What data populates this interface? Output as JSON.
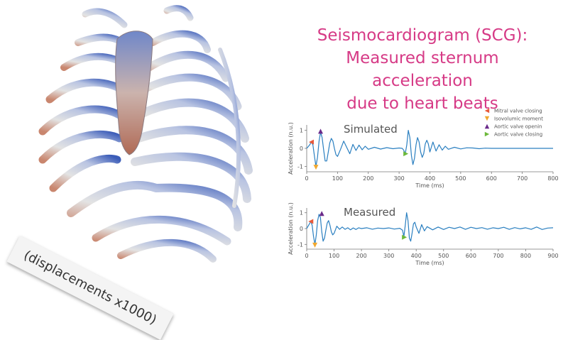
{
  "title_lines": [
    "Seismocardiogram (SCG):",
    "Measured sternum acceleration",
    "due to heart beats"
  ],
  "note": "(displacements x1000)",
  "colors": {
    "title": "#d63a86",
    "trace": "#2a7fc0",
    "mitral": "#e8593a",
    "isovolumic": "#f0a830",
    "aortic_opening": "#6a2a8a",
    "aortic_closing": "#6cb83a"
  },
  "legend": [
    {
      "label": "Mitral valve closing",
      "marker": "left-triangle",
      "color": "#e8593a"
    },
    {
      "label": "Isovolumic moment",
      "marker": "down-triangle",
      "color": "#f0a830"
    },
    {
      "label": "Aortic valve openin",
      "marker": "up-triangle",
      "color": "#6a2a8a"
    },
    {
      "label": "Aortic valve closing",
      "marker": "right-triangle",
      "color": "#6cb83a"
    }
  ],
  "chart_data": [
    {
      "type": "line",
      "title": "Simulated",
      "xlabel": "Time (ms)",
      "ylabel": "Acceleration (n.u.)",
      "xlim": [
        0,
        800
      ],
      "ylim": [
        -1.3,
        1.3
      ],
      "xticks": [
        0,
        100,
        200,
        300,
        400,
        500,
        600,
        700,
        800
      ],
      "yticks": [
        -1,
        0,
        1
      ],
      "series": [
        {
          "x": [
            0,
            5,
            10,
            15,
            20,
            25,
            30,
            35,
            40,
            45,
            50,
            55,
            60,
            65,
            70,
            75,
            80,
            85,
            90,
            95,
            100,
            110,
            120,
            130,
            140,
            150,
            160,
            170,
            180,
            190,
            200,
            220,
            240,
            260,
            280,
            300,
            310,
            315,
            320,
            325,
            330,
            335,
            340,
            345,
            350,
            355,
            360,
            365,
            370,
            375,
            380,
            385,
            390,
            395,
            400,
            410,
            420,
            430,
            440,
            450,
            460,
            480,
            500,
            520,
            540,
            560,
            580,
            600,
            650,
            700,
            750,
            800
          ],
          "y": [
            0,
            0.1,
            0.2,
            0.35,
            0.2,
            -0.4,
            -1.0,
            -0.5,
            0.4,
            0.9,
            0.6,
            -0.1,
            -0.7,
            -0.7,
            -0.2,
            0.3,
            0.55,
            0.4,
            0,
            -0.35,
            -0.45,
            -0.05,
            0.4,
            0.05,
            -0.3,
            0.22,
            -0.12,
            0.18,
            -0.08,
            0.12,
            -0.05,
            0.06,
            -0.04,
            0.04,
            -0.02,
            0.02,
            0,
            -0.1,
            -0.3,
            0.2,
            1.0,
            0.6,
            -0.4,
            -0.9,
            -0.55,
            0.2,
            0.6,
            0.35,
            -0.2,
            -0.5,
            -0.3,
            0.25,
            0.45,
            0.25,
            -0.2,
            0.35,
            -0.15,
            0.2,
            -0.1,
            0.12,
            -0.05,
            0.06,
            -0.03,
            0.03,
            0.02,
            -0.02,
            0.01,
            0,
            0,
            0,
            0,
            0
          ]
        }
      ],
      "markers": [
        {
          "event": "mitral",
          "x": 15,
          "y": 0.35
        },
        {
          "event": "isovolumic",
          "x": 30,
          "y": -1.05
        },
        {
          "event": "aortic_opening",
          "x": 45,
          "y": 0.95
        },
        {
          "event": "aortic_closing",
          "x": 322,
          "y": -0.3
        }
      ]
    },
    {
      "type": "line",
      "title": "Measured",
      "xlabel": "Time (ms)",
      "ylabel": "Acceleration (n.u.)",
      "xlim": [
        0,
        900
      ],
      "ylim": [
        -1.3,
        1.3
      ],
      "xticks": [
        0,
        100,
        200,
        300,
        400,
        500,
        600,
        700,
        800,
        900
      ],
      "yticks": [
        -1,
        0,
        1
      ],
      "series": [
        {
          "x": [
            0,
            5,
            10,
            15,
            20,
            25,
            30,
            35,
            40,
            45,
            50,
            55,
            60,
            65,
            70,
            75,
            80,
            85,
            90,
            95,
            100,
            110,
            120,
            130,
            140,
            150,
            160,
            170,
            180,
            190,
            200,
            220,
            240,
            260,
            280,
            300,
            320,
            340,
            350,
            355,
            360,
            365,
            370,
            375,
            380,
            385,
            390,
            395,
            400,
            410,
            420,
            430,
            440,
            460,
            480,
            500,
            520,
            540,
            560,
            580,
            600,
            620,
            640,
            660,
            680,
            700,
            720,
            740,
            760,
            780,
            800,
            820,
            840,
            860,
            880,
            900
          ],
          "y": [
            0,
            0.15,
            0.3,
            0.45,
            0.2,
            -0.5,
            -1.0,
            -0.4,
            0.5,
            0.9,
            0.7,
            -0.2,
            -0.8,
            -0.6,
            -0.1,
            0.35,
            0.5,
            0.2,
            -0.2,
            -0.4,
            -0.3,
            0.15,
            -0.05,
            0.1,
            -0.05,
            0.05,
            -0.08,
            0.04,
            -0.06,
            0.05,
            0,
            0.05,
            -0.04,
            0.03,
            0,
            0.04,
            -0.03,
            0.02,
            -0.1,
            -0.5,
            0.2,
            1.0,
            0.5,
            -0.6,
            -0.8,
            -0.3,
            0.3,
            0.4,
            0.1,
            -0.3,
            0.25,
            -0.15,
            0.12,
            -0.08,
            0.1,
            -0.06,
            0.08,
            0,
            0.1,
            -0.05,
            0.08,
            0,
            0.06,
            -0.04,
            0.05,
            0,
            0.08,
            -0.05,
            0.06,
            -0.02,
            0.05,
            -0.05,
            0.1,
            -0.06,
            0.03,
            0.05
          ]
        }
      ],
      "markers": [
        {
          "event": "mitral",
          "x": 15,
          "y": 0.45
        },
        {
          "event": "isovolumic",
          "x": 30,
          "y": -1.05
        },
        {
          "event": "aortic_opening",
          "x": 55,
          "y": 0.95
        },
        {
          "event": "aortic_closing",
          "x": 357,
          "y": -0.55
        }
      ]
    }
  ]
}
